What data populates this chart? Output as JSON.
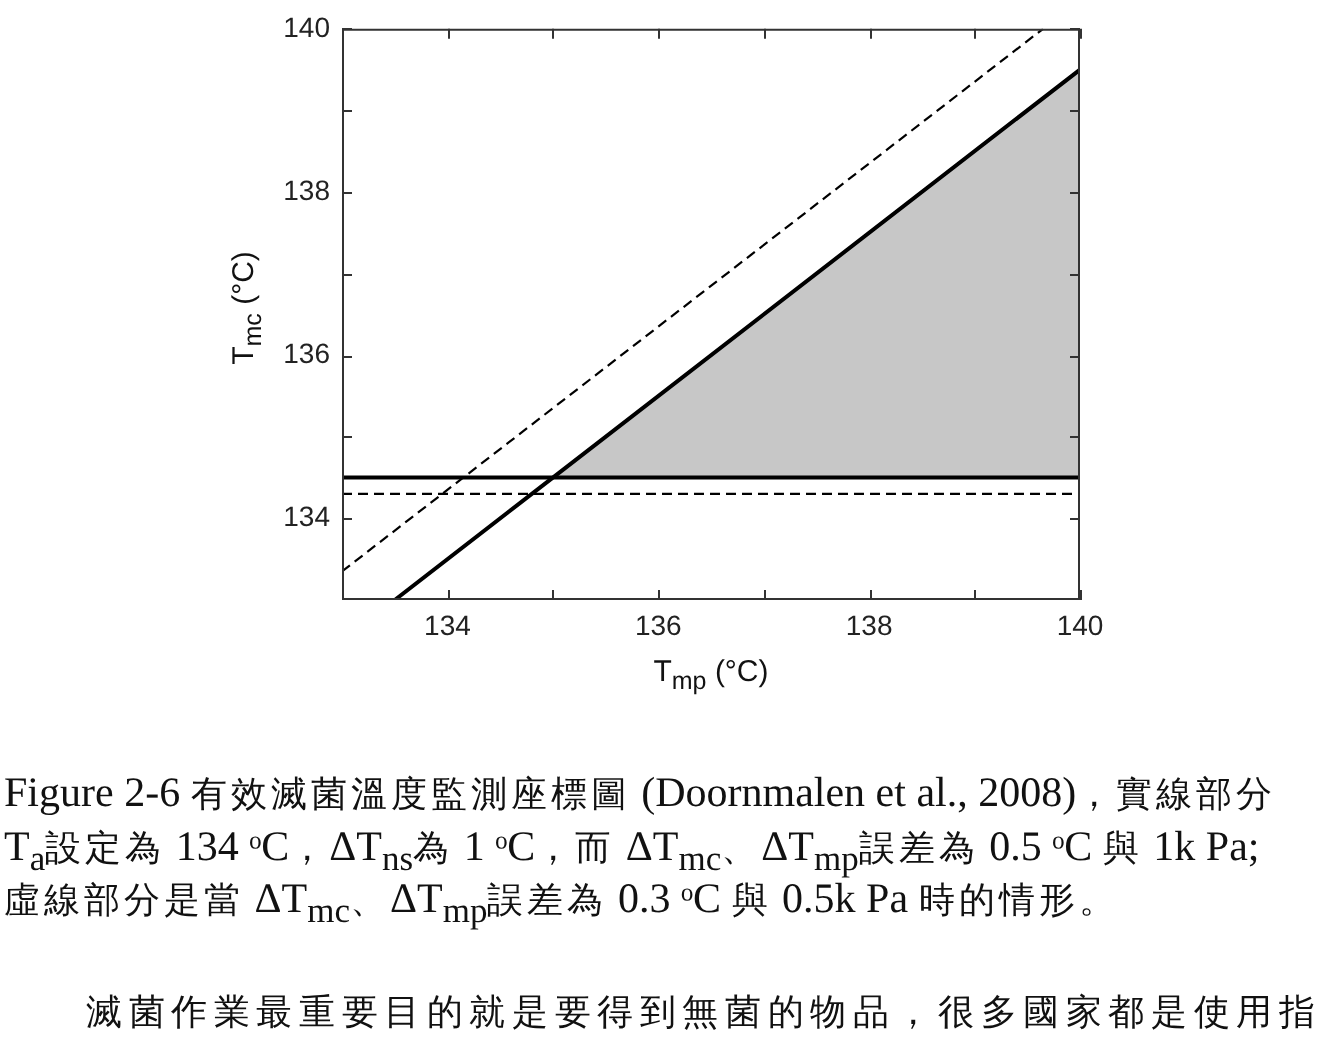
{
  "chart_data": {
    "type": "line",
    "xlabel": "T$_{mp}$ (°C)",
    "ylabel": "T$_{mc}$ (°C)",
    "xlim": [
      133,
      140
    ],
    "xticks": [
      134,
      {
        "value": 135,
        "label": null
      },
      136,
      {
        "value": 137,
        "label": null
      },
      138,
      {
        "value": 139,
        "label": null
      },
      140
    ],
    "ylim": [
      133,
      140
    ],
    "yticks": [
      134,
      {
        "value": 135,
        "label": null
      },
      136,
      {
        "value": 137,
        "label": null
      },
      138,
      {
        "value": 139,
        "label": null
      },
      140
    ],
    "series": [
      {
        "color": "#000000",
        "line_style": "solid",
        "x": [
          133,
          140
        ],
        "values": [
          134.5,
          134.5
        ]
      },
      {
        "color": "#000000",
        "line_style": "dashed",
        "x": [
          133,
          140
        ],
        "values": [
          134.3,
          134.3
        ]
      },
      {
        "color": "#000000",
        "line_style": "solid",
        "x": [
          133.5,
          135,
          140
        ],
        "values": [
          133,
          134.5,
          139.5
        ],
        "lower": [
          null,
          134.5,
          134.5
        ],
        "upper": [
          null,
          134.5,
          139.5
        ]
      },
      {
        "color": "#000000",
        "line_style": "dashed",
        "x": [
          133,
          139.65
        ],
        "values": [
          133.35,
          140
        ]
      }
    ],
    "annotations": [
      "Figure 2-6 有效滅菌溫度監測座標圖 (Doornmalen et al., 2008)，實線部分 T$_{a}$設定為 134 ᵒC，ΔT$_{ns}$為 1 ᵒC，而 ΔT$_{mc}$、ΔT$_{mp}$誤差為 0.5 ᵒC 與 1k Pa; 虛線部分是當 ΔT$_{mc}$、ΔT$_{mp}$誤差為 0.3 ᵒC 與 0.5k Pa 時的情形。",
      "滅菌作業最重要目的就是要得到無菌的物品，很多國家都是使用指"
    ]
  }
}
